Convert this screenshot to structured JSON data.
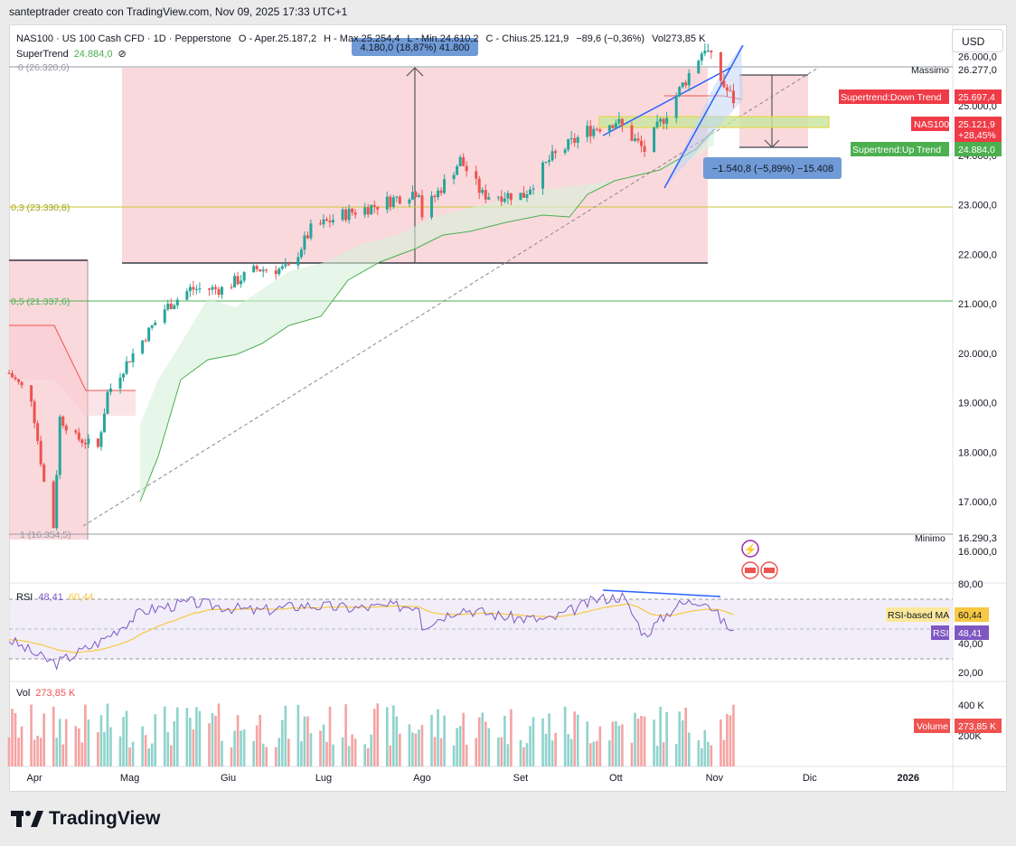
{
  "topbar": "santeptrader creato con TradingView.com, Nov 09, 2025 17:33 UTC+1",
  "currency": "USD",
  "legend": {
    "symbol": "NAS100 · US 100 Cash CFD · 1D · Pepperstone",
    "o": "O - Aper.25.187,2",
    "h": "H - Max.25.254,4",
    "l": "L - Min.24.610,2",
    "c": "C - Chius.25.121,9",
    "chg": "−89,6 (−0,36%)",
    "vol": "Vol273,85 K",
    "st_label": "SuperTrend",
    "st_value": "24.884,0"
  },
  "fib": {
    "f0": "0 (26.320,6)",
    "f03": "0,3 (23.330,8)",
    "f05": "0,5 (21.337,6)",
    "f1": "1 (16.354,5)"
  },
  "measure_up": "4.180,0 (18,87%) 41.800",
  "measure_down": "−1.540,8 (−5,89%) −15.408",
  "price_axis": [
    "26.000,0",
    "25.000,0",
    "24.000,0",
    "23.000,0",
    "22.000,0",
    "21.000,0",
    "20.000,0",
    "19.000,0",
    "18.000,0",
    "17.000,0",
    "16.000,0"
  ],
  "price_tags": {
    "massimo_label": "Massimo",
    "massimo_value": "26.277,0",
    "down_label": "Supertrend:Down Trend",
    "down_value": "25.697,4",
    "sym_label": "NAS100",
    "sym_value": "25.121,9",
    "sym_pct": "+28,45%",
    "up_label": "Supertrend:Up Trend",
    "up_value": "24.884,0",
    "minimo_label": "Minimo",
    "minimo_value": "16.290,3"
  },
  "rsi": {
    "label": "RSI",
    "v1": "48,41",
    "v2": "60,44",
    "axis": [
      "80,00",
      "40,00",
      "20,00"
    ],
    "ma_label": "RSI-based MA",
    "ma_value": "60,44",
    "rsi_label": "RSI",
    "rsi_value": "48,41"
  },
  "volume": {
    "label": "Vol",
    "value": "273,85 K",
    "axis": [
      "400 K",
      "200K"
    ],
    "tag_label": "Volume",
    "tag_value": "273,85 K"
  },
  "time_axis": [
    "Apr",
    "Mag",
    "Giu",
    "Lug",
    "Ago",
    "Set",
    "Ott",
    "Nov",
    "Dic",
    "2026"
  ],
  "brand": "TradingView",
  "colors": {
    "up": "#26a69a",
    "down": "#ef5350",
    "fib03": "#c9c933",
    "fib05": "#4caf50",
    "rsi": "#7e57c2",
    "rsi_ma": "#f7c843"
  },
  "chart_data": {
    "type": "candlestick",
    "symbol": "NAS100",
    "x_range": [
      "2025-03-24",
      "2026-01-15"
    ],
    "ylim": [
      16000,
      26500
    ],
    "close_path": [
      [
        "2025-03-24",
        19600
      ],
      [
        "2025-03-31",
        19100
      ],
      [
        "2025-04-04",
        17400
      ],
      [
        "2025-04-07",
        16500
      ],
      [
        "2025-04-09",
        18700
      ],
      [
        "2025-04-14",
        18300
      ],
      [
        "2025-04-21",
        18100
      ],
      [
        "2025-04-24",
        19200
      ],
      [
        "2025-05-01",
        19900
      ],
      [
        "2025-05-12",
        20900
      ],
      [
        "2025-05-20",
        21300
      ],
      [
        "2025-05-30",
        21300
      ],
      [
        "2025-06-10",
        21700
      ],
      [
        "2025-06-20",
        21700
      ],
      [
        "2025-06-27",
        22500
      ],
      [
        "2025-07-07",
        22800
      ],
      [
        "2025-07-18",
        23000
      ],
      [
        "2025-07-31",
        23300
      ],
      [
        "2025-08-01",
        22800
      ],
      [
        "2025-08-13",
        23900
      ],
      [
        "2025-08-20",
        23200
      ],
      [
        "2025-09-02",
        23200
      ],
      [
        "2025-09-10",
        23900
      ],
      [
        "2025-09-22",
        24500
      ],
      [
        "2025-10-01",
        24700
      ],
      [
        "2025-10-10",
        24100
      ],
      [
        "2025-10-20",
        25200
      ],
      [
        "2025-10-29",
        26200
      ],
      [
        "2025-11-04",
        25400
      ],
      [
        "2025-11-07",
        25121.9
      ]
    ],
    "fib_levels": {
      "0": 26320.6,
      "0.3": 23330.8,
      "0.5": 21337.6,
      "1": 16354.5
    },
    "massimo": 26277.0,
    "minimo": 16290.3,
    "last_close": 25121.9,
    "supertrend_up": 24884.0,
    "supertrend_down": 25697.4,
    "rsi": [
      [
        "2025-03-24",
        43
      ],
      [
        "2025-04-04",
        30
      ],
      [
        "2025-04-08",
        27
      ],
      [
        "2025-04-22",
        42
      ],
      [
        "2025-05-05",
        62
      ],
      [
        "2025-05-20",
        68
      ],
      [
        "2025-06-10",
        62
      ],
      [
        "2025-06-25",
        66
      ],
      [
        "2025-07-10",
        64
      ],
      [
        "2025-07-31",
        66
      ],
      [
        "2025-08-01",
        52
      ],
      [
        "2025-08-13",
        64
      ],
      [
        "2025-08-28",
        58
      ],
      [
        "2025-09-10",
        56
      ],
      [
        "2025-09-25",
        70
      ],
      [
        "2025-10-03",
        72
      ],
      [
        "2025-10-10",
        46
      ],
      [
        "2025-10-20",
        66
      ],
      [
        "2025-10-29",
        70
      ],
      [
        "2025-11-04",
        54
      ],
      [
        "2025-11-07",
        48.41
      ]
    ],
    "rsi_ma_last": 60.44,
    "volume_last_k": 273.85
  }
}
